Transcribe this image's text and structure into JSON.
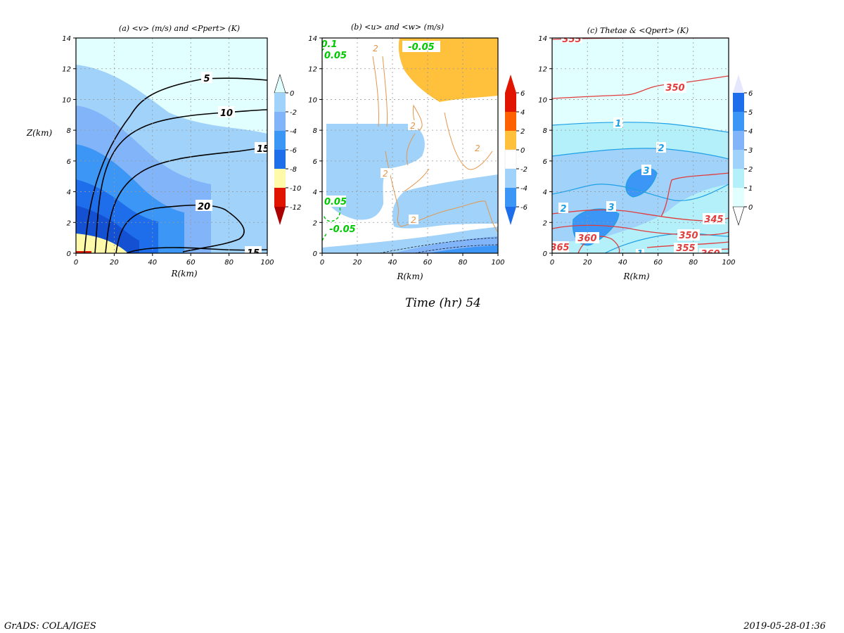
{
  "figure": {
    "time_label": "Time (hr) 54",
    "footer_left": "GrADS: COLA/IGES",
    "footer_right": "2019-05-28-01:36"
  },
  "colors": {
    "shade_light": "#e1ffff",
    "shade_0_2": "#a0d2fa",
    "shade_2_4": "#82b4fa",
    "shade_4_6": "#3c96f5",
    "shade_6_8": "#1e6eeb",
    "shade_8_10": "#1450d2",
    "shade_yellow": "#fffaaa",
    "shade_red": "#e11400",
    "shade_orange": "#ffc03c",
    "shade_orange2": "#ff6000",
    "contour_black": "#000000",
    "contour_orange": "#e6964b",
    "contour_green": "#00c800",
    "contour_red": "#e13c3c",
    "contour_cyan": "#1ea0e6"
  },
  "chart_data": [
    {
      "type": "contour",
      "title": "(a) <v> (m/s) and <Ppert> (K)",
      "xlabel": "R(km)",
      "ylabel": "Z(km)",
      "xlim": [
        0,
        100
      ],
      "ylim": [
        0,
        14
      ],
      "xticks": [
        0,
        20,
        40,
        60,
        80,
        100
      ],
      "yticks": [
        0,
        2,
        4,
        6,
        8,
        10,
        12,
        14
      ],
      "colorbar": {
        "labels": [
          "0",
          "-2",
          "-4",
          "-6",
          "-8",
          "-10",
          "-12"
        ]
      },
      "contour_labels": [
        "5",
        "10",
        "15",
        "20",
        "15"
      ]
    },
    {
      "type": "contour",
      "title": "(b) <u> and <w> (m/s)",
      "xlabel": "R(km)",
      "ylabel": "",
      "xlim": [
        0,
        100
      ],
      "ylim": [
        0,
        14
      ],
      "xticks": [
        0,
        20,
        40,
        60,
        80,
        100
      ],
      "yticks": [
        0,
        2,
        4,
        6,
        8,
        10,
        12,
        14
      ],
      "colorbar": {
        "labels": [
          "6",
          "4",
          "2",
          "0",
          "-2",
          "-4",
          "-6"
        ]
      },
      "contour_labels": [
        "2",
        "2",
        "2",
        "2",
        "2",
        "-0.05",
        "0.05",
        "0.1",
        "0.05",
        "-0.05"
      ]
    },
    {
      "type": "contour",
      "title": "(c) Thetae & <Qpert> (K)",
      "xlabel": "R(km)",
      "ylabel": "",
      "xlim": [
        0,
        100
      ],
      "ylim": [
        0,
        14
      ],
      "xticks": [
        0,
        20,
        40,
        60,
        80,
        100
      ],
      "yticks": [
        0,
        2,
        4,
        6,
        8,
        10,
        12,
        14
      ],
      "colorbar": {
        "labels": [
          "6",
          "5",
          "4",
          "3",
          "2",
          "1",
          "0"
        ]
      },
      "contour_labels": [
        "355",
        "350",
        "1",
        "2",
        "3",
        "2",
        "3",
        "345",
        "350",
        "360",
        "355",
        "365",
        "1",
        "360"
      ]
    }
  ]
}
